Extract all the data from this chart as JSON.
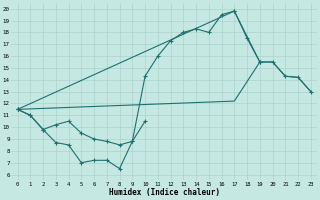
{
  "bg_color": "#c5e8e2",
  "grid_color": "#a8cdc8",
  "line_color": "#1e7070",
  "xlabel": "Humidex (Indice chaleur)",
  "xlim": [
    -0.5,
    23.5
  ],
  "ylim": [
    5.5,
    20.5
  ],
  "yticks": [
    6,
    7,
    8,
    9,
    10,
    11,
    12,
    13,
    14,
    15,
    16,
    17,
    18,
    19,
    20
  ],
  "xticks": [
    0,
    1,
    2,
    3,
    4,
    5,
    6,
    7,
    8,
    9,
    10,
    11,
    12,
    13,
    14,
    15,
    16,
    17,
    18,
    19,
    20,
    21,
    22,
    23
  ],
  "curve1_x": [
    0,
    1,
    2,
    3,
    4,
    5,
    6,
    7,
    8,
    9,
    10,
    11,
    12,
    13,
    14,
    15,
    16,
    17,
    18,
    19
  ],
  "curve1_y": [
    11.5,
    11.0,
    9.8,
    8.7,
    8.5,
    7.0,
    7.2,
    7.2,
    6.5,
    8.8,
    14.3,
    16.0,
    17.3,
    18.0,
    18.3,
    18.0,
    19.5,
    19.8,
    17.5,
    15.5
  ],
  "curve2_x": [
    0,
    1,
    2,
    3,
    4,
    5,
    6,
    7,
    8,
    9,
    10
  ],
  "curve2_y": [
    11.5,
    11.0,
    9.8,
    10.2,
    10.5,
    9.5,
    9.0,
    8.8,
    8.5,
    8.8,
    10.5
  ],
  "curve3_x": [
    0,
    17,
    19,
    20,
    21,
    22,
    23
  ],
  "curve3_y": [
    11.5,
    19.8,
    15.5,
    15.5,
    14.3,
    14.2,
    13.0
  ],
  "curve4_x": [
    0,
    17,
    19,
    20,
    21,
    22,
    23
  ],
  "curve4_y": [
    11.5,
    12.2,
    15.5,
    15.5,
    14.3,
    14.2,
    13.0
  ]
}
